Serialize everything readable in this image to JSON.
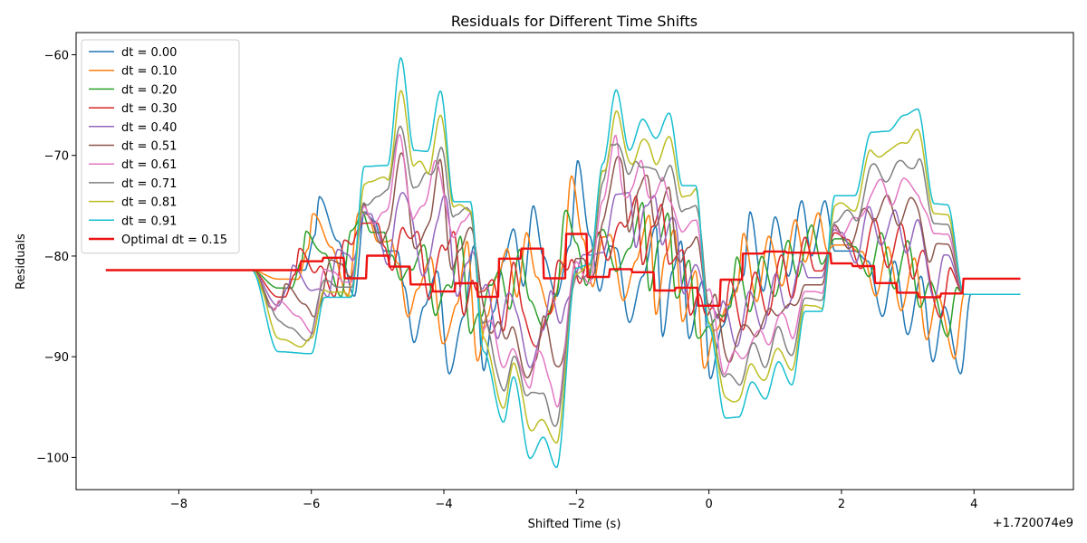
{
  "chart_data": {
    "type": "line",
    "title": "Residuals for Different Time Shifts",
    "xlabel": "Shifted Time (s)",
    "ylabel": "Residuals",
    "x_offset_label": "+1.720074e9",
    "xlim": [
      -9.55,
      5.5
    ],
    "ylim": [
      -103.2,
      -57.8
    ],
    "xticks": [
      -8,
      -6,
      -4,
      -2,
      0,
      2,
      4
    ],
    "xtick_labels": [
      "−8",
      "−6",
      "−4",
      "−2",
      "0",
      "2",
      "4"
    ],
    "yticks": [
      -100,
      -90,
      -80,
      -70,
      -60
    ],
    "ytick_labels": [
      "−100",
      "−90",
      "−80",
      "−70",
      "−60"
    ],
    "grid": false,
    "legend_position": "upper-left",
    "series": [
      {
        "name": "dt = 0.00",
        "color": "#1f77b4",
        "shift": 0.0,
        "width": 1.5
      },
      {
        "name": "dt = 0.10",
        "color": "#ff7f0e",
        "shift": 0.1,
        "width": 1.5
      },
      {
        "name": "dt = 0.20",
        "color": "#2ca02c",
        "shift": 0.2,
        "width": 1.5
      },
      {
        "name": "dt = 0.30",
        "color": "#d62728",
        "shift": 0.3,
        "width": 1.5
      },
      {
        "name": "dt = 0.40",
        "color": "#9467bd",
        "shift": 0.4,
        "width": 1.5
      },
      {
        "name": "dt = 0.51",
        "color": "#8c564b",
        "shift": 0.51,
        "width": 1.5
      },
      {
        "name": "dt = 0.61",
        "color": "#e377c2",
        "shift": 0.61,
        "width": 1.5
      },
      {
        "name": "dt = 0.71",
        "color": "#7f7f7f",
        "shift": 0.71,
        "width": 1.5
      },
      {
        "name": "dt = 0.81",
        "color": "#bcbd22",
        "shift": 0.81,
        "width": 1.5
      },
      {
        "name": "dt = 0.91",
        "color": "#17becf",
        "shift": 0.91,
        "width": 1.5
      },
      {
        "name": "Optimal dt = 0.15",
        "color": "#ee1111",
        "shift": 0.15,
        "width": 2.4,
        "smooth": true
      }
    ]
  }
}
